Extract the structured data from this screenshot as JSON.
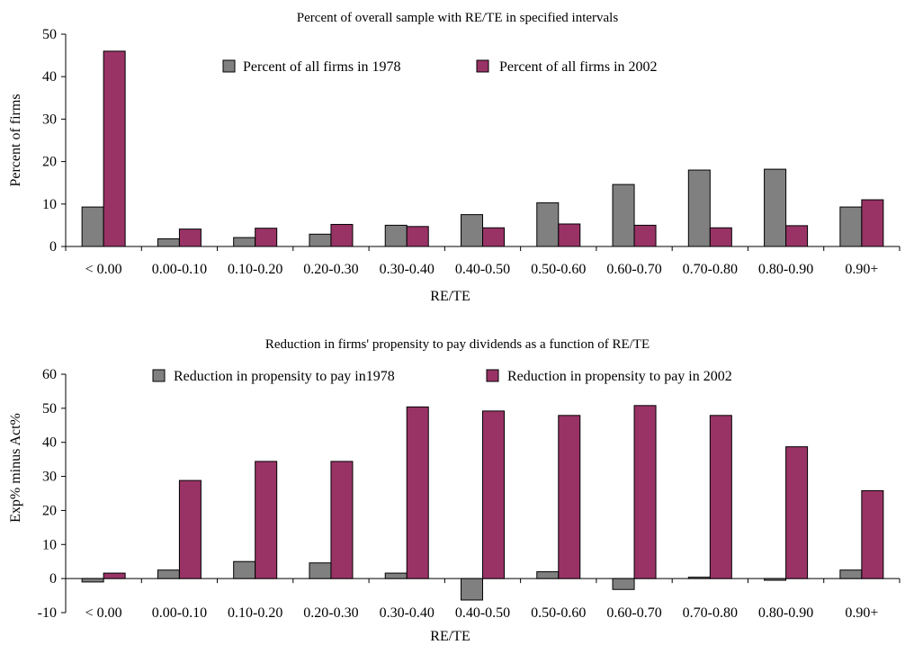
{
  "chart_data": [
    {
      "type": "bar",
      "title": "Percent of overall sample with RE/TE in specified intervals",
      "xlabel": "RE/TE",
      "ylabel": "Percent of firms",
      "ylim": [
        0,
        50
      ],
      "yticks": [
        0,
        10,
        20,
        30,
        40,
        50
      ],
      "grid": false,
      "legend_position": "top-center",
      "categories": [
        "< 0.00",
        "0.00-0.10",
        "0.10-0.20",
        "0.20-0.30",
        "0.30-0.40",
        "0.40-0.50",
        "0.50-0.60",
        "0.60-0.70",
        "0.70-0.80",
        "0.80-0.90",
        "0.90+"
      ],
      "series": [
        {
          "name": "Percent of all firms in 1978",
          "color": "#808080",
          "values": [
            9.3,
            1.8,
            2.1,
            2.9,
            5.0,
            7.5,
            10.3,
            14.6,
            18.0,
            18.2,
            9.3
          ]
        },
        {
          "name": "Percent of all firms in 2002",
          "color": "#993366",
          "values": [
            46.0,
            4.1,
            4.3,
            5.2,
            4.7,
            4.4,
            5.3,
            5.0,
            4.4,
            4.9,
            11.0
          ]
        }
      ]
    },
    {
      "type": "bar",
      "title": "Reduction in firms' propensity to pay dividends as a function of RE/TE",
      "xlabel": "RE/TE",
      "ylabel": "Exp% minus Act%",
      "ylim": [
        -10,
        60
      ],
      "yticks": [
        -10,
        0,
        10,
        20,
        30,
        40,
        50,
        60
      ],
      "grid": false,
      "legend_position": "top-center",
      "categories": [
        "< 0.00",
        "0.00-0.10",
        "0.10-0.20",
        "0.20-0.30",
        "0.30-0.40",
        "0.40-0.50",
        "0.50-0.60",
        "0.60-0.70",
        "0.70-0.80",
        "0.80-0.90",
        "0.90+"
      ],
      "series": [
        {
          "name": "Reduction in propensity to pay in1978",
          "color": "#808080",
          "values": [
            -1.0,
            2.5,
            5.0,
            4.6,
            1.6,
            -6.3,
            2.0,
            -3.2,
            0.4,
            -0.5,
            2.5
          ]
        },
        {
          "name": "Reduction in propensity to pay in 2002",
          "color": "#993366",
          "values": [
            1.6,
            28.8,
            34.4,
            34.4,
            50.4,
            49.2,
            47.9,
            50.8,
            47.9,
            38.7,
            25.8
          ]
        }
      ]
    }
  ]
}
